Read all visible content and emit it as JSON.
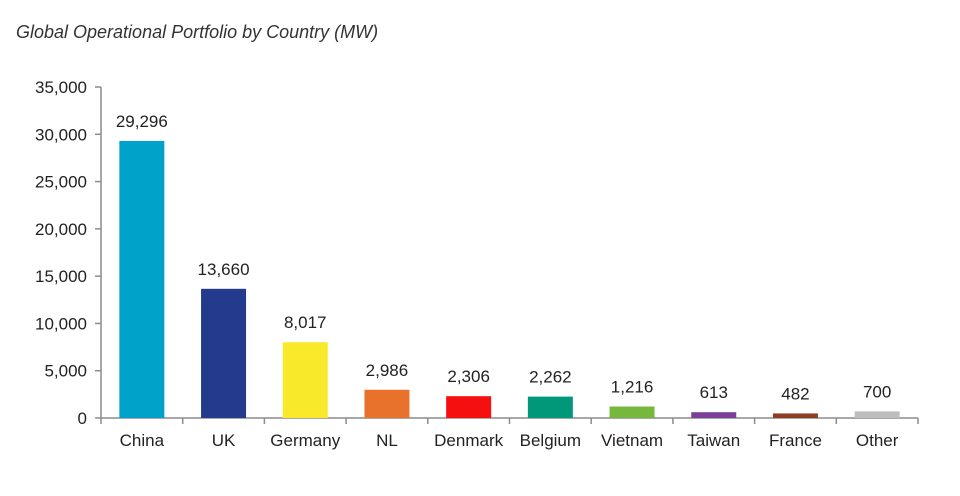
{
  "chart_data": {
    "type": "bar",
    "title": "Global Operational Portfolio by Country (MW)",
    "xlabel": "",
    "ylabel": "",
    "categories": [
      "China",
      "UK",
      "Germany",
      "NL",
      "Denmark",
      "Belgium",
      "Vietnam",
      "Taiwan",
      "France",
      "Other"
    ],
    "values": [
      29296,
      13660,
      8017,
      2986,
      2306,
      2262,
      1216,
      613,
      482,
      700
    ],
    "data_labels": [
      "29,296",
      "13,660",
      "8,017",
      "2,986",
      "2,306",
      "2,262",
      "1,216",
      "613",
      "482",
      "700"
    ],
    "colors": [
      "#00a2c9",
      "#243a8c",
      "#f9e92b",
      "#e8722b",
      "#f50f0f",
      "#009878",
      "#76b83e",
      "#7b3f97",
      "#8b3e22",
      "#bdbdbd"
    ],
    "ylim": [
      0,
      35000
    ],
    "yticks": [
      0,
      5000,
      10000,
      15000,
      20000,
      25000,
      30000,
      35000
    ],
    "ytick_labels": [
      "0",
      "5,000",
      "10,000",
      "15,000",
      "20,000",
      "25,000",
      "30,000",
      "35,000"
    ],
    "grid": false,
    "legend": "none"
  }
}
